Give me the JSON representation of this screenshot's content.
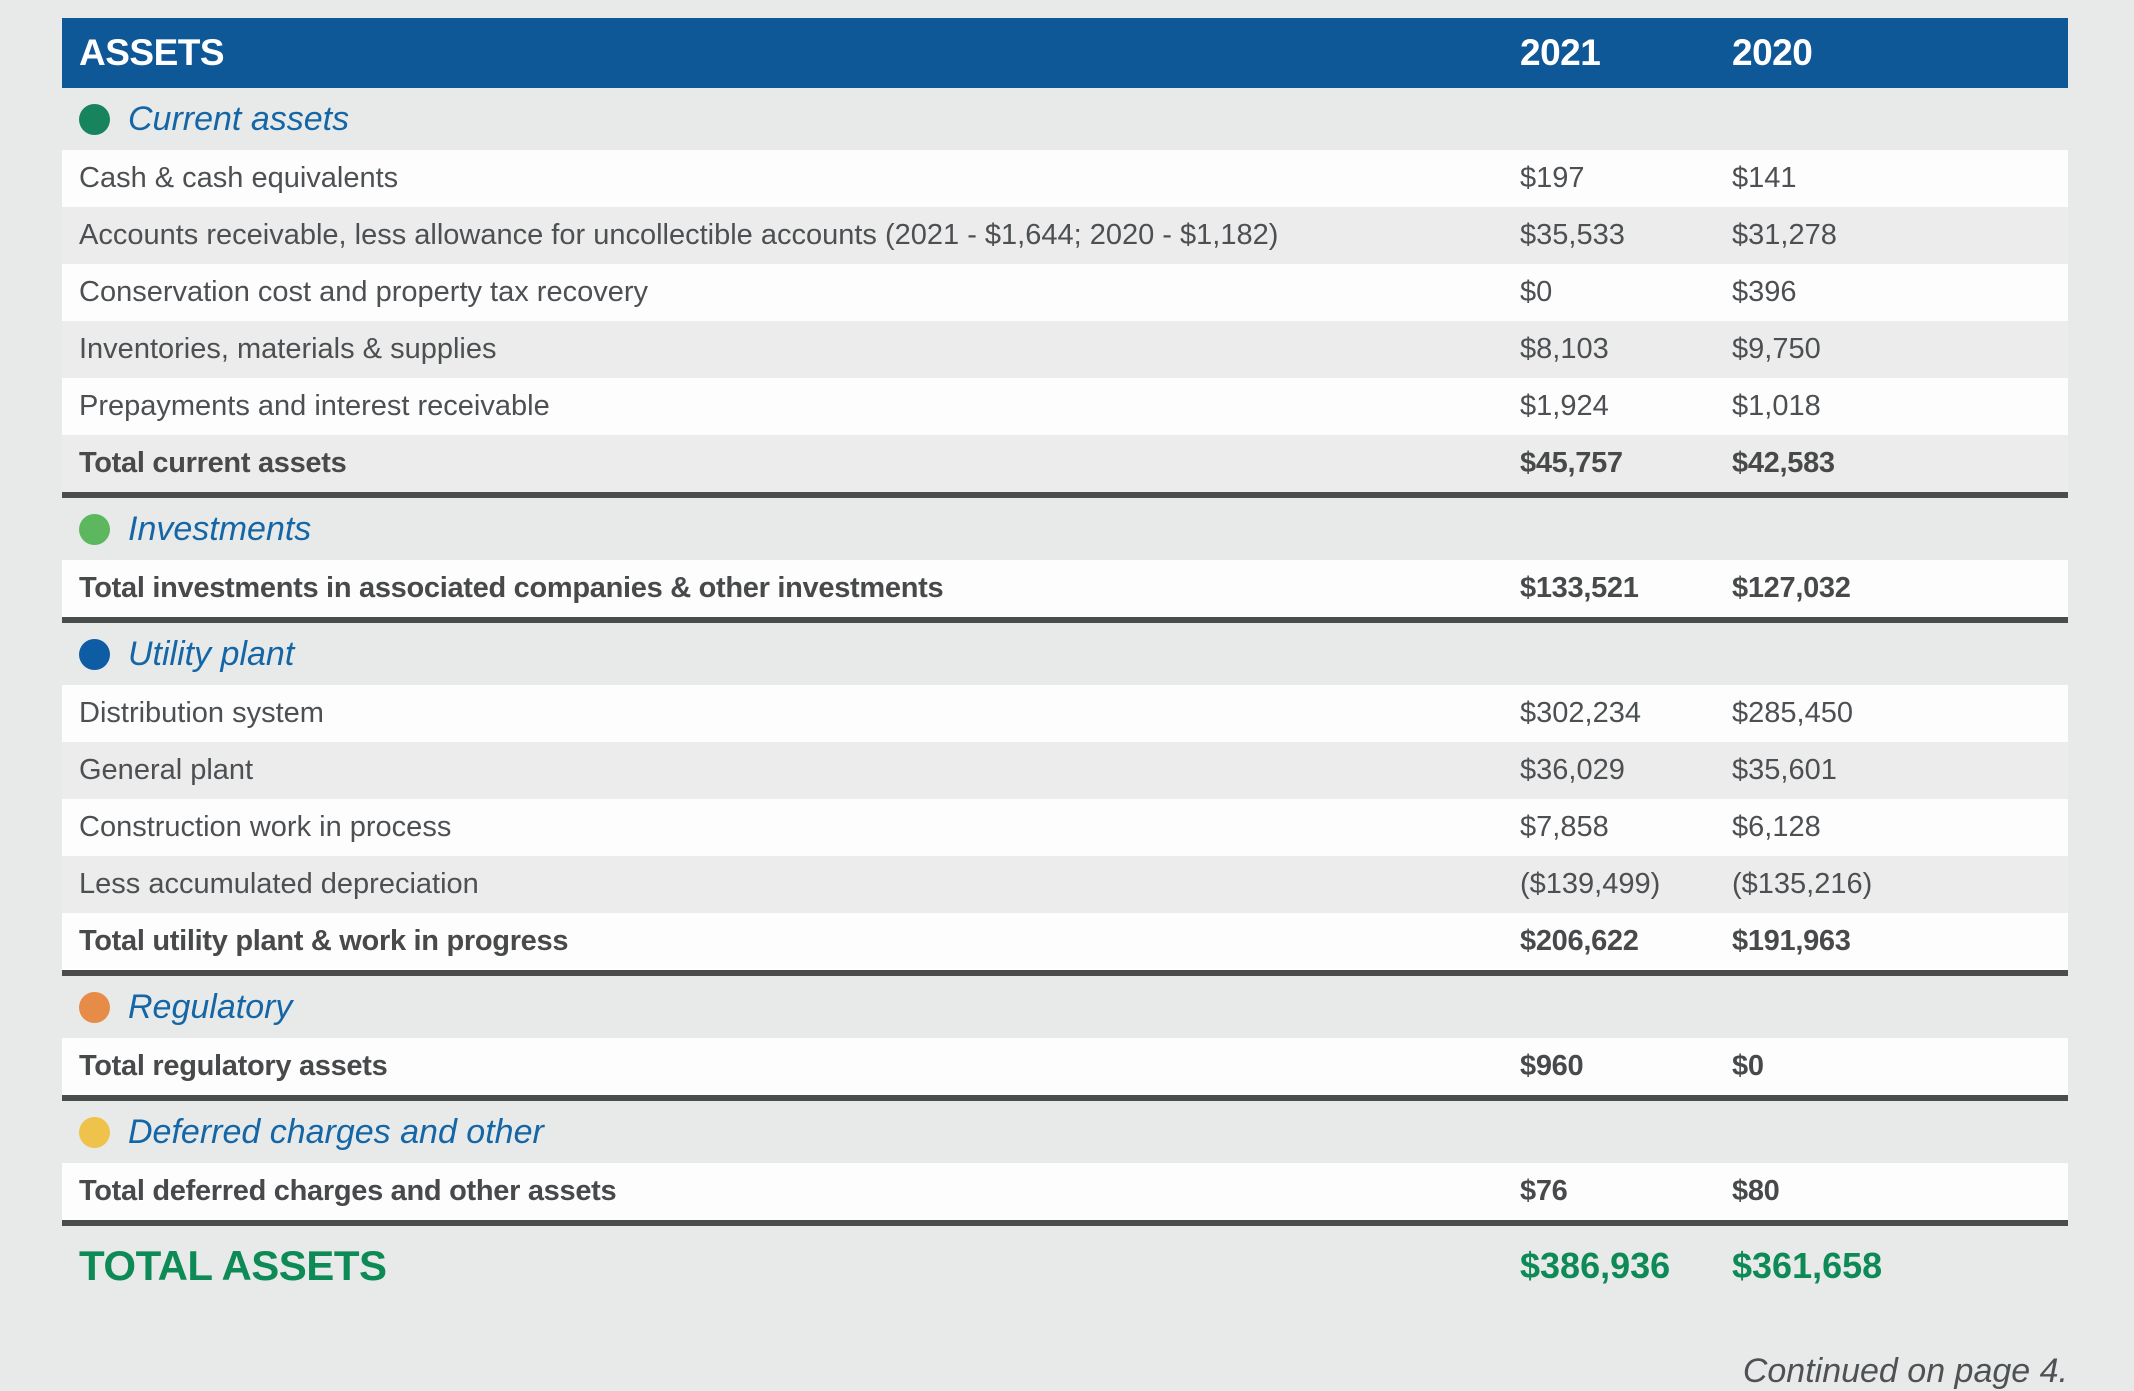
{
  "table": {
    "header": {
      "title": "ASSETS",
      "year_2021": "2021",
      "year_2020": "2020"
    },
    "sections": [
      {
        "label": "Current assets",
        "dot_color": "#17845d",
        "rows": [
          {
            "label": "Cash & cash equivalents",
            "v2021": "$197",
            "v2020": "$141"
          },
          {
            "label": "Accounts receivable, less allowance for uncollectible accounts (2021 - $1,644; 2020 - $1,182)",
            "v2021": "$35,533",
            "v2020": "$31,278"
          },
          {
            "label": "Conservation cost and property tax recovery",
            "v2021": "$0",
            "v2020": "$396"
          },
          {
            "label": "Inventories, materials & supplies",
            "v2021": "$8,103",
            "v2020": "$9,750"
          },
          {
            "label": "Prepayments and interest receivable",
            "v2021": "$1,924",
            "v2020": "$1,018"
          },
          {
            "label": "Total current assets",
            "v2021": "$45,757",
            "v2020": "$42,583"
          }
        ]
      },
      {
        "label": "Investments",
        "dot_color": "#5cb75f",
        "rows": [
          {
            "label": "Total investments in associated companies & other investments",
            "v2021": "$133,521",
            "v2020": "$127,032"
          }
        ]
      },
      {
        "label": "Utility plant",
        "dot_color": "#0d5ca4",
        "rows": [
          {
            "label": "Distribution system",
            "v2021": "$302,234",
            "v2020": "$285,450"
          },
          {
            "label": "General plant",
            "v2021": "$36,029",
            "v2020": "$35,601"
          },
          {
            "label": "Construction work in process",
            "v2021": "$7,858",
            "v2020": "$6,128"
          },
          {
            "label": "Less accumulated depreciation",
            "v2021": "($139,499)",
            "v2020": "($135,216)"
          },
          {
            "label": "Total utility plant & work in progress",
            "v2021": "$206,622",
            "v2020": "$191,963"
          }
        ]
      },
      {
        "label": "Regulatory",
        "dot_color": "#e68c48",
        "rows": [
          {
            "label": "Total regulatory assets",
            "v2021": "$960",
            "v2020": "$0"
          }
        ]
      },
      {
        "label": "Deferred charges and other",
        "dot_color": "#efc24b",
        "rows": [
          {
            "label": "Total deferred charges and other assets",
            "v2021": "$76",
            "v2020": "$80"
          }
        ]
      }
    ],
    "grand_total": {
      "label": "TOTAL ASSETS",
      "v2021": "$386,936",
      "v2020": "$361,658",
      "color": "#0e8a57"
    }
  },
  "footer": {
    "continued_note": "Continued on page 4."
  },
  "colors": {
    "header_bar": "#0e5898",
    "section_label_blue": "#1566a6",
    "page_background": "#e8eae9",
    "stripe_gray": "#ebeceb",
    "separator_dark": "#4a4d4b",
    "total_green": "#0e8a57"
  }
}
